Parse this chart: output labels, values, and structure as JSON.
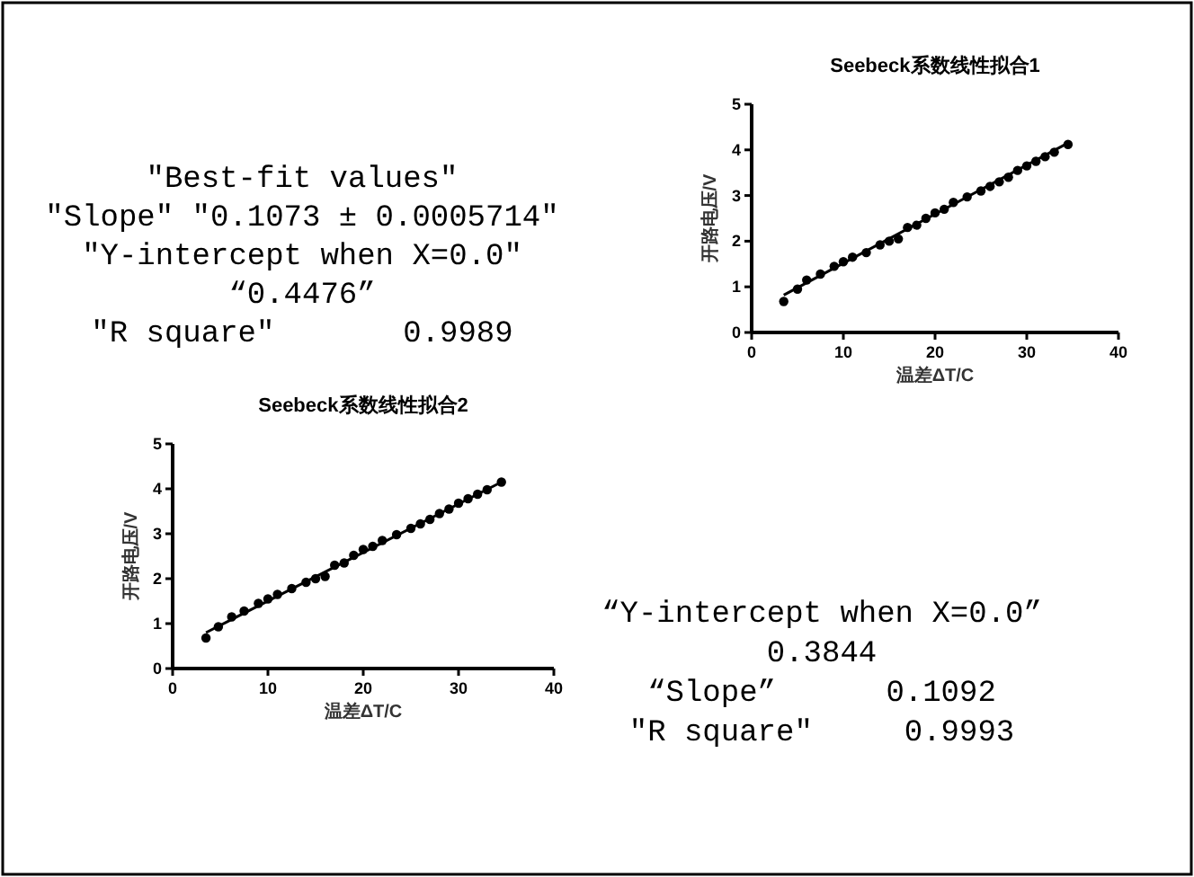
{
  "chart_data": [
    {
      "type": "other",
      "annotations": [
        "″Best-fit values″",
        "″Slope″ ″0.1073 ± 0.0005714″",
        "″Y-intercept when X=0.0″",
        "“0.4476”",
        "″R square″       0.9989"
      ]
    },
    {
      "type": "scatter",
      "title": "Seebeck系数线性拟合1",
      "xlabel": "温差ΔT/C",
      "ylabel": "开路电压/V",
      "xlim": [
        0,
        40
      ],
      "ylim": [
        0,
        5
      ],
      "xticks": [
        0,
        10,
        20,
        30,
        40
      ],
      "yticks": [
        0,
        1,
        2,
        3,
        4,
        5
      ],
      "marker": "circle",
      "series": [
        {
          "type": "scatter",
          "color": "#000000",
          "x": [
            3.5,
            5,
            6,
            7.5,
            9,
            10,
            11,
            12.5,
            14,
            15,
            16,
            17,
            18,
            19,
            20,
            21,
            22,
            23.5,
            25,
            26,
            27,
            28,
            29,
            30,
            31,
            32,
            33,
            34.5
          ],
          "values": [
            0.68,
            0.95,
            1.15,
            1.28,
            1.45,
            1.55,
            1.65,
            1.75,
            1.92,
            2.0,
            2.05,
            2.3,
            2.35,
            2.5,
            2.62,
            2.7,
            2.85,
            2.97,
            3.1,
            3.2,
            3.3,
            3.4,
            3.55,
            3.65,
            3.75,
            3.85,
            3.95,
            4.12
          ]
        },
        {
          "type": "line",
          "color": "#000000",
          "marker": "none",
          "x": [
            3.5,
            34.5
          ],
          "values": [
            0.82,
            4.15
          ]
        }
      ]
    },
    {
      "type": "scatter",
      "title": "Seebeck系数线性拟合2",
      "xlabel": "温差ΔT/C",
      "ylabel": "开路电压/V",
      "xlim": [
        0,
        40
      ],
      "ylim": [
        0,
        5
      ],
      "xticks": [
        0,
        10,
        20,
        30,
        40
      ],
      "yticks": [
        0,
        1,
        2,
        3,
        4,
        5
      ],
      "marker": "circle",
      "series": [
        {
          "type": "scatter",
          "color": "#000000",
          "x": [
            3.5,
            4.8,
            6.2,
            7.5,
            9,
            10,
            11,
            12.5,
            14,
            15,
            16,
            17,
            18,
            19,
            20,
            21,
            22,
            23.5,
            25,
            26,
            27,
            28,
            29,
            30,
            31,
            32,
            33,
            34.5
          ],
          "values": [
            0.68,
            0.93,
            1.15,
            1.28,
            1.45,
            1.55,
            1.65,
            1.78,
            1.92,
            2.0,
            2.05,
            2.3,
            2.35,
            2.52,
            2.65,
            2.72,
            2.85,
            2.98,
            3.12,
            3.22,
            3.32,
            3.45,
            3.55,
            3.68,
            3.78,
            3.88,
            3.98,
            4.15
          ]
        },
        {
          "type": "line",
          "color": "#000000",
          "marker": "none",
          "x": [
            3.5,
            34.5
          ],
          "values": [
            0.8,
            4.15
          ]
        }
      ]
    },
    {
      "type": "other",
      "annotations": [
        "“Y-intercept when X=0.0”",
        "0.3844",
        "“Slope”      0.1092",
        "″R square″     0.9993"
      ]
    }
  ]
}
